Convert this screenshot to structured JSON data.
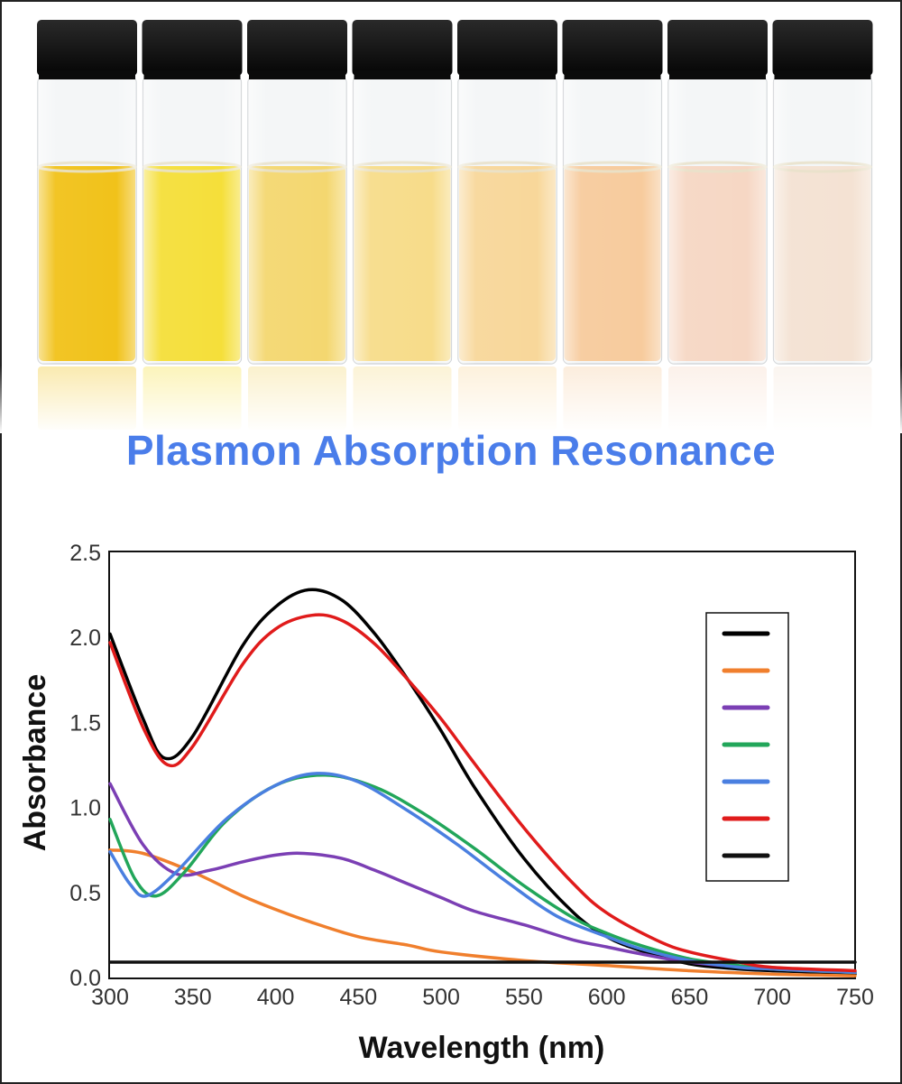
{
  "figure": {
    "headline": "Plasmon Absorption Resonance",
    "vials": {
      "count": 8,
      "liquid_colors": [
        "#f1c21a",
        "#f5df3a",
        "#f4d770",
        "#f7dc8a",
        "#f8d79a",
        "#f7cb9d",
        "#f6d7c4",
        "#f4e2d3"
      ],
      "cap_color": "#111111"
    }
  },
  "chart_data": {
    "type": "line",
    "title": "",
    "xlabel": "Wavelength (nm)",
    "ylabel": "Absorbance",
    "xlim": [
      300,
      750
    ],
    "ylim": [
      0,
      2.5
    ],
    "xticks": [
      300,
      350,
      400,
      450,
      500,
      550,
      600,
      650,
      700,
      750
    ],
    "yticks": [
      0.0,
      0.5,
      1.0,
      1.5,
      2.0,
      2.5
    ],
    "xtick_labels": [
      "300",
      "350",
      "400",
      "450",
      "500",
      "550",
      "600",
      "650",
      "700",
      "750"
    ],
    "ytick_labels": [
      "0.0",
      "0.5",
      "1.0",
      "1.5",
      "2.0",
      "2.5"
    ],
    "grid": false,
    "legend": {
      "placement": "top-right",
      "entries_text": [
        "",
        "",
        "",
        "",
        "",
        "",
        ""
      ]
    },
    "series": [
      {
        "name": "",
        "color": "#000000",
        "x": [
          300,
          320,
          333,
          350,
          380,
          400,
          420,
          440,
          460,
          480,
          500,
          520,
          550,
          580,
          600,
          620,
          650,
          680,
          700,
          730,
          750
        ],
        "y": [
          2.02,
          1.52,
          1.29,
          1.42,
          1.95,
          2.18,
          2.28,
          2.22,
          2.02,
          1.75,
          1.45,
          1.12,
          0.7,
          0.38,
          0.24,
          0.16,
          0.08,
          0.05,
          0.04,
          0.03,
          0.02
        ]
      },
      {
        "name": "",
        "color": "#f07f2d",
        "x": [
          300,
          320,
          350,
          380,
          400,
          420,
          450,
          480,
          500,
          550,
          600,
          650,
          700,
          750
        ],
        "y": [
          0.75,
          0.73,
          0.62,
          0.48,
          0.4,
          0.33,
          0.24,
          0.19,
          0.15,
          0.1,
          0.07,
          0.04,
          0.02,
          0.01
        ]
      },
      {
        "name": "",
        "color": "#7b3fb4",
        "x": [
          300,
          320,
          340,
          360,
          380,
          400,
          417,
          440,
          460,
          480,
          500,
          520,
          550,
          580,
          600,
          620,
          650,
          700,
          750
        ],
        "y": [
          1.14,
          0.78,
          0.61,
          0.63,
          0.68,
          0.72,
          0.73,
          0.7,
          0.63,
          0.55,
          0.47,
          0.39,
          0.31,
          0.22,
          0.18,
          0.14,
          0.09,
          0.05,
          0.03
        ]
      },
      {
        "name": "",
        "color": "#22a65a",
        "x": [
          300,
          315,
          328,
          345,
          370,
          400,
          430,
          460,
          490,
          520,
          550,
          580,
          600,
          620,
          650,
          680,
          700,
          750
        ],
        "y": [
          0.93,
          0.58,
          0.48,
          0.62,
          0.92,
          1.13,
          1.19,
          1.12,
          0.96,
          0.76,
          0.54,
          0.35,
          0.26,
          0.19,
          0.11,
          0.07,
          0.05,
          0.03
        ]
      },
      {
        "name": "",
        "color": "#4a7fe0",
        "x": [
          300,
          312,
          322,
          340,
          370,
          400,
          425,
          450,
          480,
          510,
          540,
          570,
          600,
          620,
          650,
          680,
          700,
          750
        ],
        "y": [
          0.74,
          0.55,
          0.48,
          0.62,
          0.93,
          1.13,
          1.2,
          1.15,
          0.98,
          0.78,
          0.56,
          0.36,
          0.24,
          0.17,
          0.1,
          0.06,
          0.05,
          0.03
        ]
      },
      {
        "name": "",
        "color": "#e01b1b",
        "x": [
          300,
          320,
          335,
          350,
          380,
          400,
          422,
          440,
          460,
          480,
          500,
          520,
          550,
          580,
          600,
          630,
          650,
          680,
          700,
          750
        ],
        "y": [
          1.97,
          1.47,
          1.25,
          1.36,
          1.84,
          2.05,
          2.13,
          2.1,
          1.96,
          1.75,
          1.52,
          1.26,
          0.88,
          0.55,
          0.38,
          0.22,
          0.15,
          0.09,
          0.06,
          0.04
        ]
      },
      {
        "name": "",
        "color": "#111111",
        "x": [
          300,
          400,
          500,
          600,
          700,
          750
        ],
        "y": [
          0.09,
          0.09,
          0.09,
          0.09,
          0.09,
          0.09
        ]
      }
    ]
  }
}
